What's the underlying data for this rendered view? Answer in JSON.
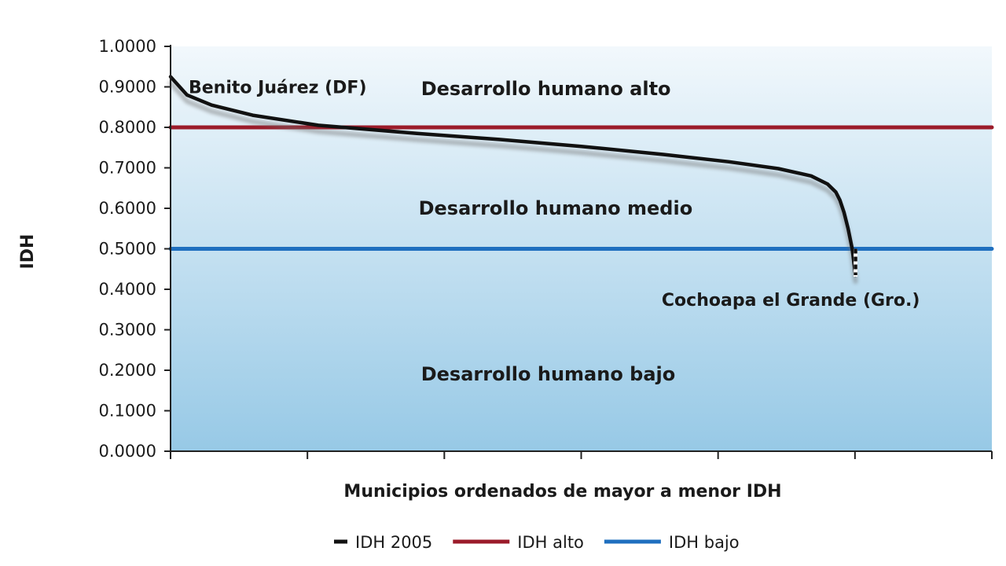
{
  "chart_data": {
    "type": "line",
    "title": "",
    "xlabel": "Municipios ordenados de mayor a menor IDH",
    "ylabel": "IDH",
    "ylim": [
      0,
      1
    ],
    "y_ticks": [
      "0.0000",
      "0.1000",
      "0.2000",
      "0.3000",
      "0.4000",
      "0.5000",
      "0.6000",
      "0.7000",
      "0.8000",
      "0.9000",
      "1.0000"
    ],
    "x_ticks_count": 6,
    "grid": false,
    "legend_position": "bottom",
    "background_gradient": [
      "#f2f8fc",
      "#97c9e6"
    ],
    "series": [
      {
        "name": "IDH 2005",
        "color": "#111111",
        "x_fraction": [
          0,
          0.02,
          0.05,
          0.1,
          0.18,
          0.3,
          0.4,
          0.5,
          0.6,
          0.68,
          0.74,
          0.78,
          0.8,
          0.81,
          0.815,
          0.82,
          0.825,
          0.83,
          0.834
        ],
        "values": [
          0.925,
          0.88,
          0.855,
          0.83,
          0.805,
          0.785,
          0.77,
          0.753,
          0.733,
          0.715,
          0.698,
          0.68,
          0.66,
          0.64,
          0.62,
          0.59,
          0.55,
          0.5,
          0.435
        ]
      },
      {
        "name": "IDH alto",
        "color": "#9b1b2a",
        "x_fraction": [
          0,
          1
        ],
        "values": [
          0.8,
          0.8
        ]
      },
      {
        "name": "IDH bajo",
        "color": "#1f6fbf",
        "x_fraction": [
          0,
          1
        ],
        "values": [
          0.5,
          0.5
        ]
      }
    ],
    "band_labels": [
      {
        "text": "Desarrollo humano alto",
        "y": 0.895,
        "x_fraction": 0.305
      },
      {
        "text": "Desarrollo humano medio",
        "y": 0.6,
        "x_fraction": 0.302
      },
      {
        "text": "Desarrollo humano bajo",
        "y": 0.19,
        "x_fraction": 0.305
      }
    ],
    "annotations": [
      {
        "text": "Benito Juárez (DF)",
        "y": 0.9,
        "x_fraction": 0.022
      },
      {
        "text": "Cochoapa el Grande (Gro.)",
        "y": 0.375,
        "x_fraction": 0.598
      }
    ]
  },
  "legend": [
    {
      "label": "IDH 2005",
      "color": "#111111",
      "style": "short"
    },
    {
      "label": "IDH alto",
      "color": "#9b1b2a",
      "style": "long"
    },
    {
      "label": "IDH bajo",
      "color": "#1f6fbf",
      "style": "long"
    }
  ]
}
